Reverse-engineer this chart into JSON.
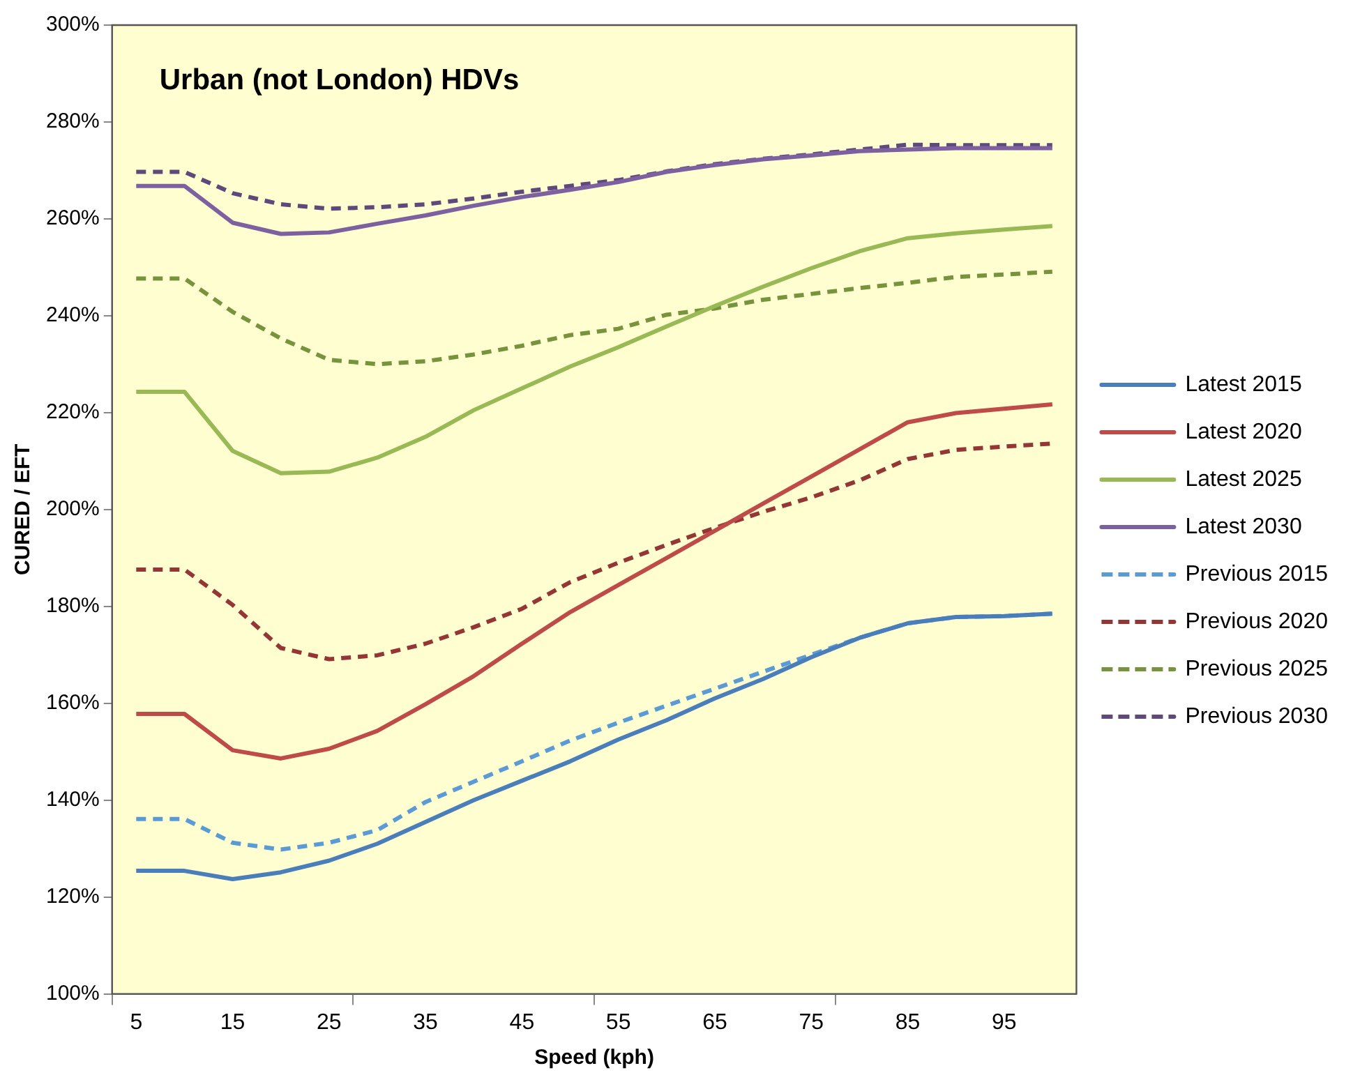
{
  "chart_data": {
    "type": "line",
    "title": "Urban (not London) HDVs",
    "xlabel": "Speed (kph)",
    "ylabel": "CURED / EFT",
    "categories": [
      "5",
      null,
      "15",
      null,
      "25",
      null,
      "35",
      null,
      "45",
      null,
      "55",
      null,
      "65",
      null,
      "75",
      null,
      "85",
      null,
      "95",
      null
    ],
    "ylim": [
      100,
      300
    ],
    "yticks": [
      {
        "value": 100,
        "label": "100%"
      },
      {
        "value": 120,
        "label": "120%"
      },
      {
        "value": 140,
        "label": "140%"
      },
      {
        "value": 160,
        "label": "160%"
      },
      {
        "value": 180,
        "label": "180%"
      },
      {
        "value": 200,
        "label": "200%"
      },
      {
        "value": 220,
        "label": "220%"
      },
      {
        "value": 240,
        "label": "240%"
      },
      {
        "value": 260,
        "label": "260%"
      },
      {
        "value": 280,
        "label": "280%"
      },
      {
        "value": 300,
        "label": "300%"
      }
    ],
    "grid": false,
    "legend": "right",
    "marker": "none",
    "series": [
      {
        "name": "Latest 2015",
        "color": "#4a7ebb",
        "line_style": "solid",
        "values": [
          125.4,
          125.4,
          123.7,
          125.1,
          127.5,
          131,
          135.5,
          140,
          144,
          148,
          152.5,
          156.5,
          161,
          165,
          169.5,
          173.5,
          176.5,
          177.8,
          178,
          178.5
        ]
      },
      {
        "name": "Latest 2020",
        "color": "#be4b48",
        "line_style": "solid",
        "values": [
          157.8,
          157.8,
          150.3,
          148.6,
          150.6,
          154.3,
          159.8,
          165.6,
          172.3,
          178.8,
          184.4,
          190,
          195.6,
          201.2,
          206.8,
          212.4,
          218,
          219.9,
          220.8,
          221.7
        ]
      },
      {
        "name": "Latest 2025",
        "color": "#98b954",
        "line_style": "solid",
        "values": [
          224.3,
          224.3,
          212.1,
          207.5,
          207.8,
          210.7,
          215,
          220.5,
          225,
          229.5,
          233.5,
          237.8,
          242,
          246,
          249.8,
          253.3,
          256,
          257,
          257.8,
          258.5
        ]
      },
      {
        "name": "Latest 2030",
        "color": "#7d60a0",
        "line_style": "solid",
        "values": [
          266.8,
          266.8,
          259.2,
          256.9,
          257.2,
          259,
          260.7,
          262.7,
          264.5,
          266,
          267.6,
          269.7,
          271.1,
          272.3,
          273.1,
          274,
          274.3,
          274.6,
          274.6,
          274.6
        ]
      },
      {
        "name": "Previous 2015",
        "color": "#5b9bd5",
        "line_style": "dashed",
        "values": [
          136.1,
          136.1,
          131.2,
          129.8,
          131.2,
          133.8,
          139.6,
          143.8,
          148,
          152.3,
          156,
          159.5,
          163,
          166.5,
          170,
          173.5,
          176.5,
          177.8,
          178,
          178.5
        ]
      },
      {
        "name": "Previous 2020",
        "color": "#943634",
        "line_style": "dashed",
        "values": [
          187.6,
          187.6,
          180.3,
          171.4,
          169.1,
          169.9,
          172.3,
          175.7,
          179.5,
          185,
          189,
          192.7,
          196.2,
          199.5,
          202.5,
          206,
          210.4,
          212.3,
          213,
          213.6
        ]
      },
      {
        "name": "Previous 2025",
        "color": "#77933c",
        "line_style": "dashed",
        "values": [
          247.7,
          247.7,
          240.8,
          235.3,
          230.9,
          230,
          230.6,
          232,
          233.8,
          236,
          237.3,
          240.2,
          241.5,
          243.3,
          244.5,
          245.7,
          246.8,
          248,
          248.5,
          249.1
        ]
      },
      {
        "name": "Previous 2030",
        "color": "#5f497a",
        "line_style": "dashed",
        "values": [
          269.7,
          269.7,
          265.3,
          263,
          262.1,
          262.4,
          263,
          264.2,
          265.6,
          266.8,
          268,
          269.8,
          271.3,
          272.4,
          273.3,
          274.3,
          275.3,
          275.2,
          275.2,
          275.2
        ]
      }
    ]
  }
}
